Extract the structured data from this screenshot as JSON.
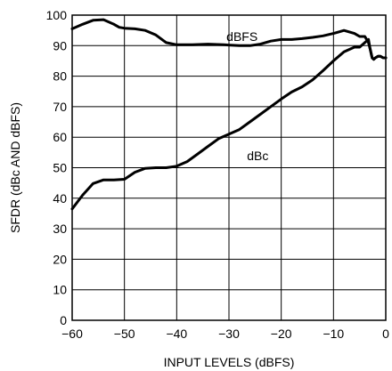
{
  "chart_data": {
    "type": "line",
    "title": "",
    "xlabel": "INPUT LEVELS (dBFS)",
    "ylabel": "SFDR (dBc AND dBFS)",
    "xlim": [
      -60,
      0
    ],
    "ylim": [
      0,
      100
    ],
    "x_ticks": [
      -60,
      -50,
      -40,
      -30,
      -20,
      -10,
      0
    ],
    "y_ticks": [
      0,
      10,
      20,
      30,
      40,
      50,
      60,
      70,
      80,
      90,
      100
    ],
    "grid": true,
    "legend": "none",
    "series": [
      {
        "name": "dBFS",
        "label_at": [
          -27.5,
          91.5
        ],
        "x": [
          -60,
          -58,
          -56,
          -54,
          -52,
          -51,
          -50,
          -48,
          -46,
          -44,
          -42,
          -40,
          -37,
          -34,
          -31,
          -28,
          -26,
          -24,
          -22,
          -20,
          -18,
          -16,
          -14,
          -12,
          -10,
          -8,
          -6,
          -5,
          -4,
          -3.3,
          -3,
          -2.6,
          -2.3,
          -2,
          -1.5,
          -1,
          -0.5,
          0
        ],
        "y": [
          95.5,
          97,
          98.3,
          98.5,
          97,
          96,
          95.7,
          95.5,
          95,
          93.5,
          91,
          90.3,
          90.3,
          90.5,
          90.3,
          90,
          90,
          90.5,
          91.5,
          92,
          92,
          92.3,
          92.7,
          93.2,
          94,
          95,
          94,
          93,
          93,
          91,
          89,
          86,
          85.5,
          86,
          86.5,
          86.5,
          86,
          86
        ]
      },
      {
        "name": "dBc",
        "label_at": [
          -24.5,
          52.5
        ],
        "x": [
          -60,
          -58,
          -56,
          -54,
          -52,
          -50,
          -48,
          -46,
          -44,
          -42,
          -40,
          -38,
          -36,
          -34,
          -32,
          -30,
          -28,
          -26,
          -24,
          -22,
          -20,
          -18,
          -16,
          -14,
          -12,
          -10,
          -8,
          -6,
          -5,
          -4,
          -3.3,
          -3,
          -2.6,
          -2.3,
          -2,
          -1.5,
          -1,
          -0.5,
          0
        ],
        "y": [
          36.5,
          41,
          44.8,
          46,
          46,
          46.2,
          48.5,
          49.8,
          50,
          50,
          50.5,
          52,
          54.5,
          57,
          59.5,
          61,
          62.5,
          65,
          67.5,
          70,
          72.5,
          74.8,
          76.5,
          78.8,
          81.8,
          85,
          88,
          89.5,
          89.5,
          91,
          92,
          89,
          86,
          85.5,
          86,
          86.5,
          86.5,
          86,
          86
        ]
      }
    ]
  }
}
